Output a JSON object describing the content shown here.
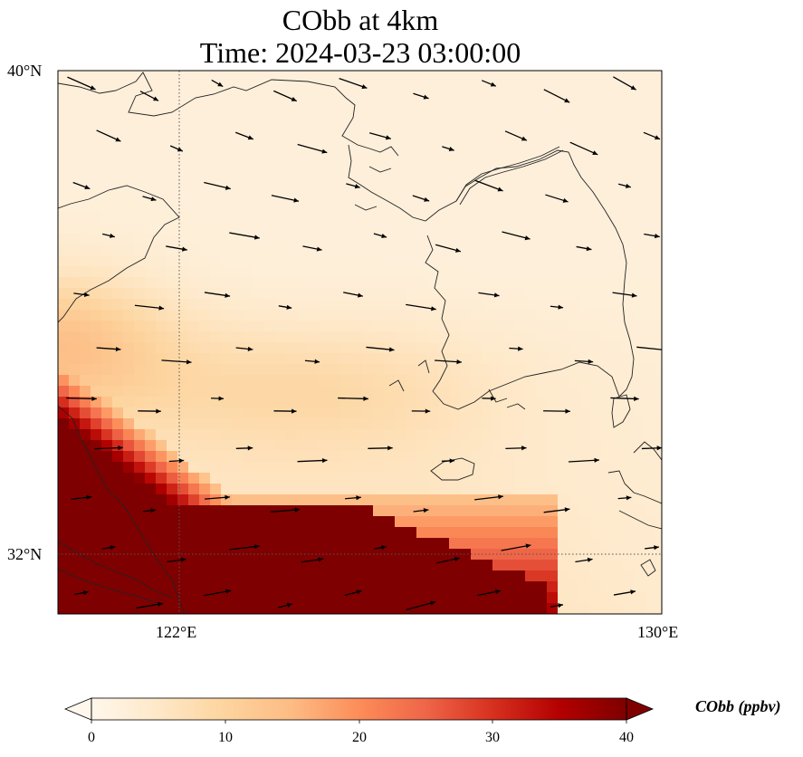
{
  "title": {
    "line1": "CObb at 4km",
    "line2": "Time: 2024-03-23 03:00:00"
  },
  "map": {
    "lon_range": [
      120.2,
      130.0
    ],
    "lat_range": [
      31.0,
      40.0
    ],
    "gridlines": {
      "lons": [
        122,
        130
      ],
      "lats": [
        32,
        40
      ],
      "style": "dotted"
    },
    "lat_labels": [
      "40°N",
      "32°N"
    ],
    "lon_labels": [
      "122°E",
      "130°E"
    ],
    "field_max_value": 40
  },
  "colorbar": {
    "label": "CObb (ppbv)",
    "ticks": [
      "0",
      "10",
      "20",
      "30",
      "40"
    ],
    "range": [
      0,
      40
    ],
    "extend": "both",
    "colormap": "OrRd",
    "colors": [
      "#fff7ec",
      "#fee8c8",
      "#fdd49e",
      "#fdbb84",
      "#fc8d59",
      "#ef6548",
      "#d7301f",
      "#b30000",
      "#7f0000"
    ]
  }
}
